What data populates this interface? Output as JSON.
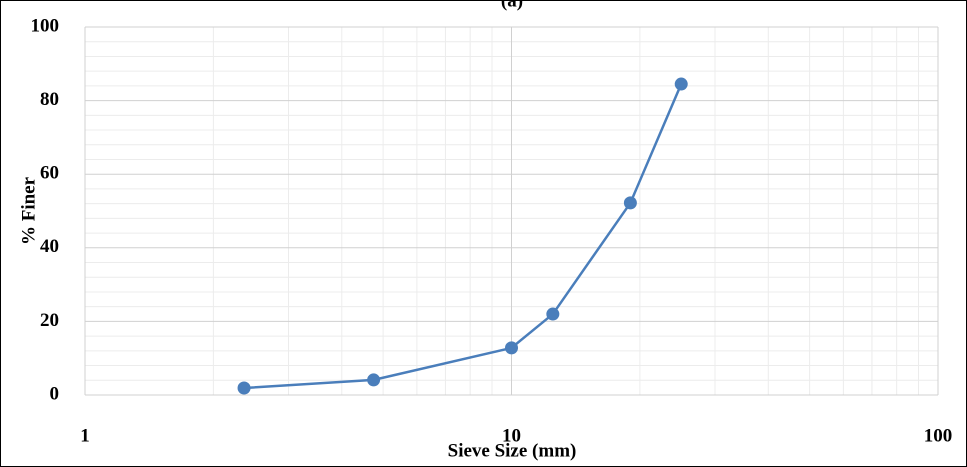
{
  "chart_data": {
    "type": "line",
    "title": "(a)",
    "x_label": "Sieve Size (mm)",
    "y_label": "% Finer",
    "x": [
      2.36,
      4.75,
      10,
      12.5,
      19,
      25
    ],
    "series": [
      {
        "name": "% Finer",
        "color": "#4a7ebb",
        "values": [
          1.9,
          4.1,
          12.8,
          22,
          52.2,
          84.5
        ]
      }
    ],
    "xscale": "log",
    "xlim": [
      1,
      100
    ],
    "xticks": [
      1,
      10,
      100
    ],
    "ylim": [
      0,
      100
    ],
    "yticks": [
      0,
      20,
      40,
      60,
      80,
      100
    ],
    "grid": true,
    "minor_grid": true
  }
}
